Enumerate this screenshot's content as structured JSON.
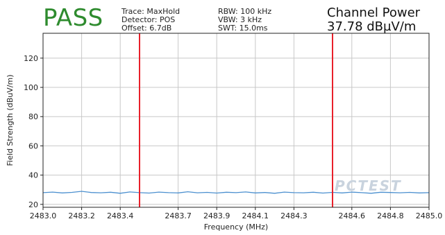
{
  "header": {
    "status": "PASS",
    "trace": "Trace: MaxHold",
    "detector": "Detector: POS",
    "offset": "Offset: 6.7dB",
    "rbw": "RBW: 100 kHz",
    "vbw": "VBW: 3 kHz",
    "swt": "SWT: 15.0ms",
    "channel_power_label": "Channel Power",
    "channel_power_value": "37.78 dBµV/m"
  },
  "watermark": "PCTEST",
  "colors": {
    "pass": "#2e8b2e",
    "trace": "#4a8fcf",
    "marker": "#e8202a",
    "grid": "#c8c8c8"
  },
  "chart_data": {
    "type": "line",
    "title": "",
    "xlabel": "Frequency (MHz)",
    "ylabel": "Field Strength (dBuV/m)",
    "xlim": [
      2483.0,
      2485.0
    ],
    "ylim": [
      18,
      137
    ],
    "x_ticks": [
      2483.0,
      2483.2,
      2483.4,
      2483.7,
      2483.9,
      2484.1,
      2484.3,
      2484.6,
      2484.8,
      2485.0
    ],
    "x_tick_labels": [
      "2483.0",
      "2483.2",
      "2483.4",
      "2483.7",
      "2483.9",
      "2484.1",
      "2484.3",
      "2484.6",
      "2484.8",
      "2485.0"
    ],
    "y_ticks": [
      20,
      40,
      60,
      80,
      100,
      120
    ],
    "grid": true,
    "markers_x": [
      2483.5,
      2484.5
    ],
    "series": [
      {
        "x": [
          2483.0,
          2483.05,
          2483.1,
          2483.15,
          2483.2,
          2483.25,
          2483.3,
          2483.35,
          2483.4,
          2483.45,
          2483.5,
          2483.55,
          2483.6,
          2483.65,
          2483.7,
          2483.75,
          2483.8,
          2483.85,
          2483.9,
          2483.95,
          2484.0,
          2484.05,
          2484.1,
          2484.15,
          2484.2,
          2484.25,
          2484.3,
          2484.35,
          2484.4,
          2484.45,
          2484.5,
          2484.55,
          2484.6,
          2484.65,
          2484.7,
          2484.75,
          2484.8,
          2484.85,
          2484.9,
          2484.95,
          2485.0
        ],
        "values": [
          28.0,
          28.4,
          27.8,
          28.2,
          28.9,
          28.1,
          27.9,
          28.3,
          27.6,
          28.5,
          28.0,
          27.7,
          28.4,
          28.0,
          27.8,
          28.6,
          27.9,
          28.2,
          27.7,
          28.3,
          28.0,
          28.5,
          27.8,
          28.1,
          27.6,
          28.4,
          28.0,
          27.9,
          28.3,
          27.7,
          28.2,
          27.8,
          28.4,
          28.0,
          27.6,
          28.3,
          28.1,
          27.9,
          28.2,
          27.8,
          28.0
        ]
      }
    ]
  }
}
